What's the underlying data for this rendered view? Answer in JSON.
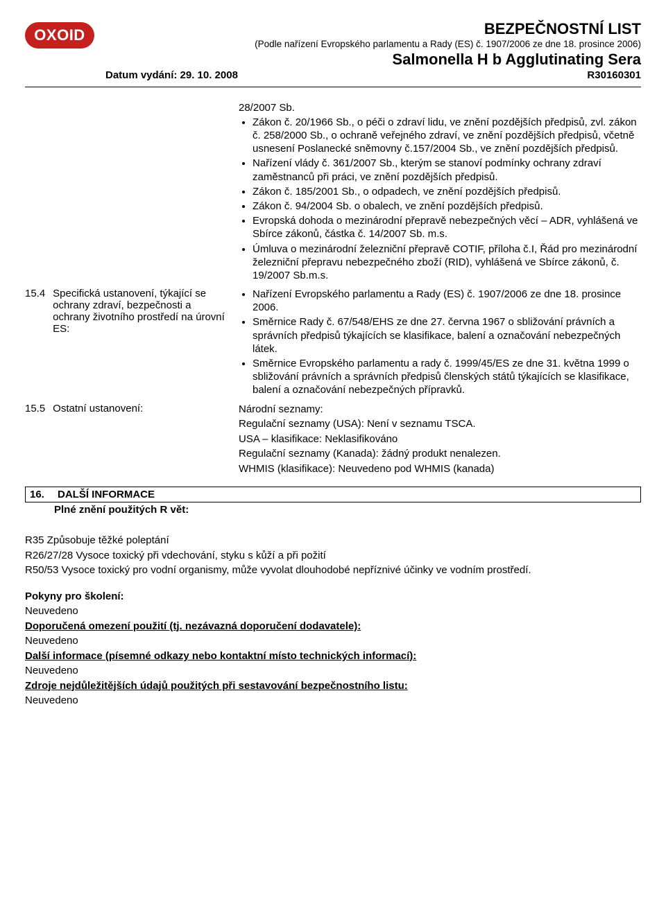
{
  "logo_text": "OXOID",
  "header": {
    "title": "BEZPEČNOSTNÍ LIST",
    "subtitle": "(Podle nařízení Evropského parlamentu a Rady (ES) č. 1907/2006 ze dne 18. prosince 2006)",
    "product": "Salmonella H b Agglutinating Sera",
    "date_label": "Datum vydání: 29. 10. 2008",
    "code": "R30160301"
  },
  "top_block": {
    "pre_line": "28/2007 Sb.",
    "bullets": [
      "Zákon č. 20/1966 Sb., o péči o zdraví lidu, ve znění pozdějších předpisů, zvl. zákon č. 258/2000 Sb., o ochraně veřejného zdraví, ve znění pozdějších předpisů, včetně usnesení Poslanecké sněmovny č.157/2004 Sb., ve znění pozdějších předpisů.",
      "Nařízení vlády č. 361/2007 Sb., kterým se stanoví podmínky ochrany zdraví zaměstnanců při práci, ve znění pozdějších předpisů.",
      "Zákon č. 185/2001 Sb., o odpadech, ve znění pozdějších předpisů.",
      "Zákon č. 94/2004 Sb. o obalech, ve znění pozdějších předpisů.",
      "Evropská dohoda o mezinárodní přepravě nebezpečných věcí – ADR, vyhlášená ve Sbírce zákonů, částka  č. 14/2007 Sb. m.s.",
      "Úmluva o mezinárodní železniční přepravě COTIF, příloha č.I, Řád pro mezinárodní železniční přepravu nebezpečného zboží (RID), vyhlášená ve Sbírce zákonů, č. 19/2007 Sb.m.s."
    ]
  },
  "section_15_4": {
    "num": "15.4",
    "label": "Specifická ustanovení, týkající se ochrany zdraví, bezpečnosti a ochrany životního prostředí na úrovní ES:",
    "bullets": [
      "Nařízení Evropského parlamentu a Rady (ES) č. 1907/2006 ze dne 18. prosince 2006.",
      "Směrnice Rady č. 67/548/EHS  ze dne 27. června 1967 o sbližování právních a správních předpisů týkajících se klasifikace, balení a označování nebezpečných látek.",
      "Směrnice Evropského parlamentu a rady č. 1999/45/ES ze dne 31. května 1999 o sbližování právních a správních předpisů členských států týkajících se klasifikace, balení a označování nebezpečných přípravků."
    ]
  },
  "section_15_5": {
    "num": "15.5",
    "label": "Ostatní ustanovení:",
    "lines": [
      "Národní seznamy:",
      "Regulační seznamy (USA): Není v seznamu TSCA.",
      "USA – klasifikace: Neklasifikováno",
      "Regulační seznamy (Kanada): žádný produkt nenalezen.",
      "WHMIS (klasifikace): Neuvedeno pod WHMIS (kanada)"
    ]
  },
  "section_16": {
    "num": "16.",
    "title": "DALŠÍ INFORMACE",
    "sub": "Plné znění použitých R vět:"
  },
  "r_phrases": [
    "R35 Způsobuje těžké poleptání",
    "R26/27/28  Vysoce toxický při vdechování, styku s kůží a při požití",
    "R50/53 Vysoce toxický pro vodní organismy, může vyvolat dlouhodobé nepříznivé účinky ve vodním prostředí."
  ],
  "footer_blocks": [
    {
      "heading": "Pokyny pro školení:",
      "body": "Neuvedeno"
    },
    {
      "heading": "Doporučená omezení použití (tj. nezávazná doporučení dodavatele):",
      "body": "Neuvedeno"
    },
    {
      "heading": "Další informace (písemné odkazy nebo kontaktní místo technických informací):",
      "body": "Neuvedeno"
    },
    {
      "heading": "Zdroje nejdůležitějších údajů použitých při sestavování bezpečnostního listu:",
      "body": "Neuvedeno"
    }
  ],
  "colors": {
    "logo_bg": "#c4201d",
    "text": "#000000",
    "bg": "#ffffff"
  }
}
